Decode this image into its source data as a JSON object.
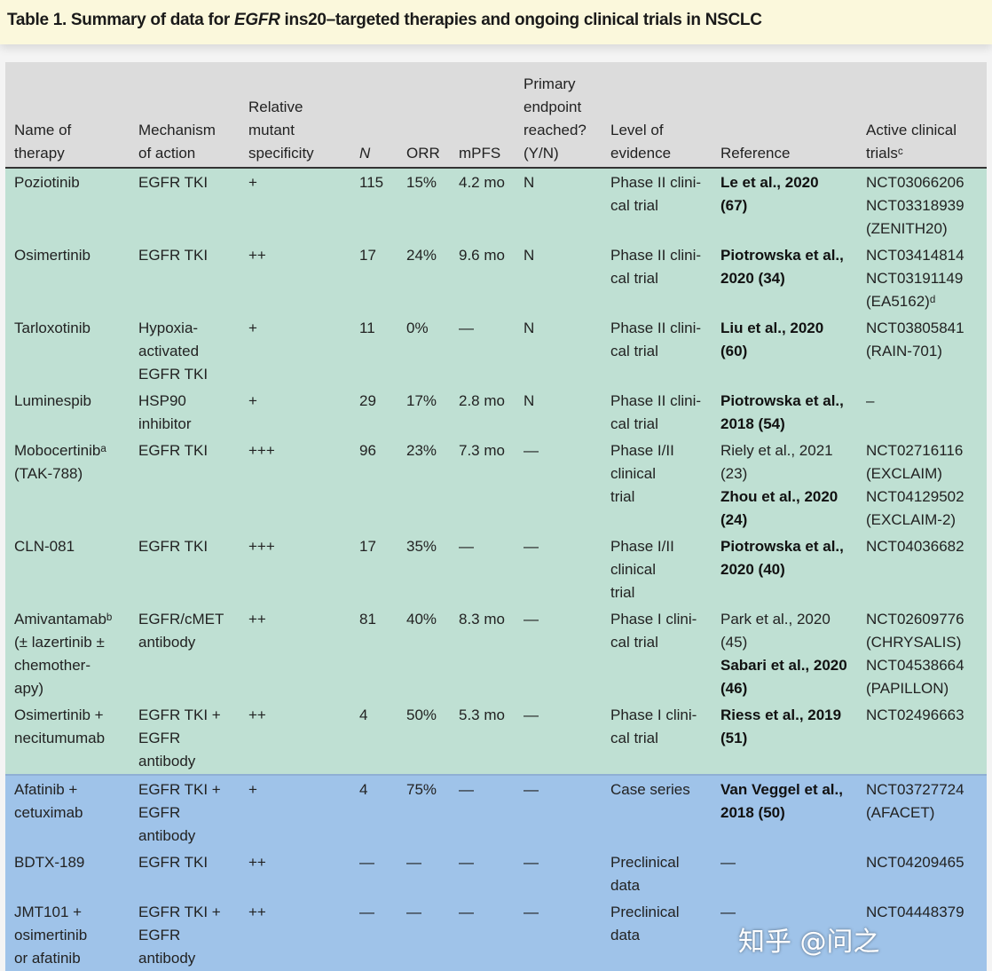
{
  "title": {
    "prefix": "Table 1.  Summary of data for ",
    "italic": "EGFR",
    "suffix": " ins20–targeted therapies and ongoing clinical trials in NSCLC"
  },
  "headers": [
    "Name of\ntherapy",
    "Mechanism\nof action",
    "Relative\nmutant\nspecificity",
    "N",
    "ORR",
    "mPFS",
    "Primary\nendpoint\nreached?\n(Y/N)",
    "Level of\nevidence",
    "Reference",
    "Active clinical\ntrialsᶜ"
  ],
  "colors": {
    "header": "#dcdcdc",
    "group1": "#bfe0d3",
    "group2": "#9fc3e9",
    "title_band": "#fbf8dc"
  },
  "rows": [
    {
      "group": "green",
      "cells": [
        "Poziotinib",
        "EGFR TKI",
        "+",
        "115",
        "15%",
        "4.2 mo",
        "N",
        "Phase II clini-\n   cal trial"
      ],
      "refs": [
        {
          "text": "Le et al., 2020\n   (67)",
          "bold": true
        }
      ],
      "trials": "NCT03066206\nNCT03318939\n   (ZENITH20)"
    },
    {
      "group": "green",
      "cells": [
        "Osimertinib",
        "EGFR TKI",
        "++",
        "17",
        "24%",
        "9.6 mo",
        "N",
        "Phase II clini-\n   cal trial"
      ],
      "refs": [
        {
          "text": "Piotrowska et al.,\n   2020 (34)",
          "bold": true
        }
      ],
      "trials": "NCT03414814\nNCT03191149\n   (EA5162)ᵈ"
    },
    {
      "group": "green",
      "cells": [
        "Tarloxotinib",
        "Hypoxia-\n   activated\n   EGFR TKI",
        "+",
        "11",
        "0%",
        "—",
        "N",
        "Phase II clini-\n   cal trial"
      ],
      "refs": [
        {
          "text": "Liu et al., 2020\n   (60)",
          "bold": true
        }
      ],
      "trials": "NCT03805841\n   (RAIN-701)"
    },
    {
      "group": "green",
      "cells": [
        "Luminespib",
        "HSP90\n   inhibitor",
        "+",
        "29",
        "17%",
        "2.8 mo",
        "N",
        "Phase II clini-\n   cal trial"
      ],
      "refs": [
        {
          "text": "Piotrowska et al.,\n   2018 (54)",
          "bold": true
        }
      ],
      "trials": "–"
    },
    {
      "group": "green",
      "cells": [
        "Mobocertinibᵃ\n   (TAK-788)",
        "EGFR TKI",
        "+++",
        "96",
        "23%",
        "7.3 mo",
        "—",
        "Phase I/II\n   clinical\n   trial"
      ],
      "refs": [
        {
          "text": "Riely et al., 2021\n   (23)",
          "bold": false
        },
        {
          "text": "Zhou et al., 2020\n   (24)",
          "bold": true
        }
      ],
      "trials": "NCT02716116\n   (EXCLAIM)\nNCT04129502\n   (EXCLAIM-2)"
    },
    {
      "group": "green",
      "cells": [
        "CLN-081",
        "EGFR TKI",
        "+++",
        "17",
        "35%",
        "—",
        "—",
        "Phase I/II\n   clinical\n   trial"
      ],
      "refs": [
        {
          "text": "Piotrowska et al.,\n   2020 (40)",
          "bold": true
        }
      ],
      "trials": "NCT04036682"
    },
    {
      "group": "green",
      "cells": [
        "Amivantamabᵇ\n   (± lazertinib ±\n   chemother-\n   apy)",
        "EGFR/cMET\n   antibody",
        "++",
        "81",
        "40%",
        "8.3 mo",
        "—",
        "Phase I clini-\n   cal trial"
      ],
      "refs": [
        {
          "text": "Park et al., 2020\n   (45)",
          "bold": false
        },
        {
          "text": "Sabari et al., 2020\n   (46)",
          "bold": true
        }
      ],
      "trials": "NCT02609776\n   (CHRYSALIS)\nNCT04538664\n   (PAPILLON)"
    },
    {
      "group": "green",
      "cells": [
        "Osimertinib +\n   necitumumab",
        "EGFR TKI +\n   EGFR\n   antibody",
        "++",
        "4",
        "50%",
        "5.3 mo",
        "—",
        "Phase I clini-\n   cal trial"
      ],
      "refs": [
        {
          "text": "Riess et al., 2019\n   (51)",
          "bold": true
        }
      ],
      "trials": "NCT02496663"
    },
    {
      "group": "blue",
      "cells": [
        "Afatinib +\n   cetuximab",
        "EGFR TKI +\n   EGFR\n   antibody",
        "+",
        "4",
        "75%",
        "—",
        "—",
        "Case series"
      ],
      "refs": [
        {
          "text": "Van Veggel et al.,\n   2018 (50)",
          "bold": true
        }
      ],
      "trials": "NCT03727724\n   (AFACET)"
    },
    {
      "group": "blue",
      "cells": [
        "BDTX-189",
        "EGFR TKI",
        "++",
        "—",
        "—",
        "—",
        "—",
        "Preclinical\n   data"
      ],
      "refs": [
        {
          "text": "—",
          "bold": false
        }
      ],
      "trials": "NCT04209465"
    },
    {
      "group": "blue",
      "cells": [
        "JMT101 +\n   osimertinib\n   or afatinib",
        "EGFR TKI +\n   EGFR\n   antibody",
        "++",
        "—",
        "—",
        "—",
        "—",
        "Preclinical\n   data"
      ],
      "refs": [
        {
          "text": "—",
          "bold": false
        }
      ],
      "trials": "NCT04448379"
    }
  ],
  "watermark": "知乎 @问之"
}
